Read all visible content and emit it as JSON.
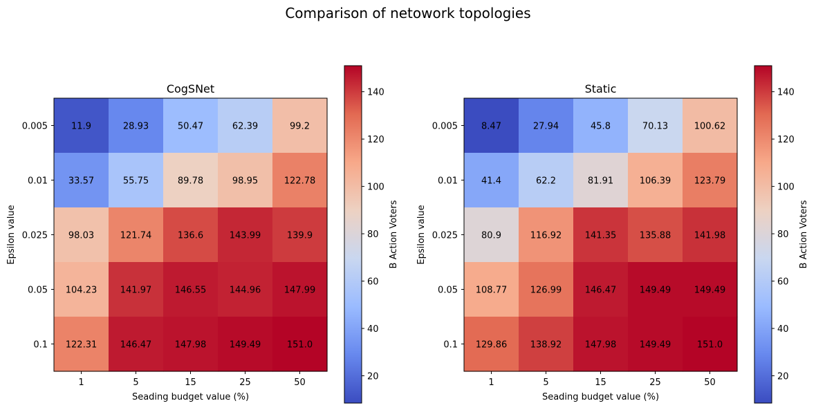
{
  "figure_title": "Comparison of netowork topologies",
  "colormap": {
    "name": "coolwarm",
    "min": 8.47,
    "max": 151.0,
    "stops": [
      "#3b4cc0",
      "#6788ee",
      "#9abbff",
      "#c9d7f0",
      "#edd1c2",
      "#f7a889",
      "#e26952",
      "#b40426"
    ]
  },
  "chart_data": [
    {
      "type": "heatmap",
      "title": "CogSNet",
      "xlabel": "Seading budget value (%)",
      "ylabel": "Epsilon value",
      "x_categories": [
        "1",
        "5",
        "15",
        "25",
        "50"
      ],
      "y_categories": [
        "0.005",
        "0.01",
        "0.025",
        "0.05",
        "0.1"
      ],
      "values": [
        [
          11.9,
          28.93,
          50.47,
          62.39,
          99.2
        ],
        [
          33.57,
          55.75,
          89.78,
          98.95,
          122.78
        ],
        [
          98.03,
          121.74,
          136.6,
          143.99,
          139.9
        ],
        [
          104.23,
          141.97,
          146.55,
          144.96,
          147.99
        ],
        [
          122.31,
          146.47,
          147.98,
          149.49,
          151.0
        ]
      ],
      "cell_labels": [
        [
          "11.9",
          "28.93",
          "50.47",
          "62.39",
          "99.2"
        ],
        [
          "33.57",
          "55.75",
          "89.78",
          "98.95",
          "122.78"
        ],
        [
          "98.03",
          "121.74",
          "136.6",
          "143.99",
          "139.9"
        ],
        [
          "104.23",
          "141.97",
          "146.55",
          "144.96",
          "147.99"
        ],
        [
          "122.31",
          "146.47",
          "147.98",
          "149.49",
          "151.0"
        ]
      ],
      "colorbar": {
        "label": "B Action Voters",
        "ticks": [
          "20",
          "40",
          "60",
          "80",
          "100",
          "120",
          "140"
        ]
      }
    },
    {
      "type": "heatmap",
      "title": "Static",
      "xlabel": "Seading budget value (%)",
      "ylabel": "Epsilon value",
      "x_categories": [
        "1",
        "5",
        "15",
        "25",
        "50"
      ],
      "y_categories": [
        "0.005",
        "0.01",
        "0.025",
        "0.05",
        "0.1"
      ],
      "values": [
        [
          8.47,
          27.94,
          45.8,
          70.13,
          100.62
        ],
        [
          41.4,
          62.2,
          81.91,
          106.39,
          123.79
        ],
        [
          80.9,
          116.92,
          141.35,
          135.88,
          141.98
        ],
        [
          108.77,
          126.99,
          146.47,
          149.49,
          149.49
        ],
        [
          129.86,
          138.92,
          147.98,
          149.49,
          151.0
        ]
      ],
      "cell_labels": [
        [
          "8.47",
          "27.94",
          "45.8",
          "70.13",
          "100.62"
        ],
        [
          "41.4",
          "62.2",
          "81.91",
          "106.39",
          "123.79"
        ],
        [
          "80.9",
          "116.92",
          "141.35",
          "135.88",
          "141.98"
        ],
        [
          "108.77",
          "126.99",
          "146.47",
          "149.49",
          "149.49"
        ],
        [
          "129.86",
          "138.92",
          "147.98",
          "149.49",
          "151.0"
        ]
      ],
      "colorbar": {
        "label": "B Action Voters",
        "ticks": [
          "20",
          "40",
          "60",
          "80",
          "100",
          "120",
          "140"
        ]
      }
    }
  ]
}
